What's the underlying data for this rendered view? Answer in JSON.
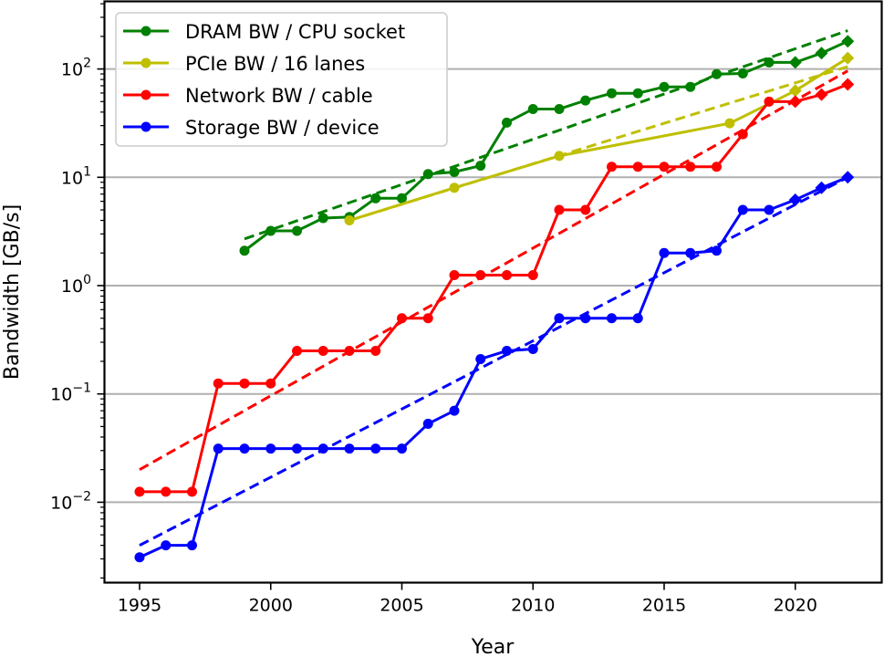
{
  "chart_data": {
    "type": "line",
    "title": "",
    "xlabel": "Year",
    "ylabel": "Bandwidth [GB/s]",
    "yscale": "log",
    "xlim": [
      1994.0,
      2023.3
    ],
    "ylim": [
      0.0019,
      260
    ],
    "xticks": [
      1995,
      2000,
      2005,
      2010,
      2015,
      2020
    ],
    "xtick_labels": [
      "1995",
      "2000",
      "2005",
      "2010",
      "2015",
      "2020"
    ],
    "yticks": [
      0.01,
      0.1,
      1,
      10,
      100
    ],
    "ytick_labels": [
      {
        "base": "10",
        "exp": "−2"
      },
      {
        "base": "10",
        "exp": "−1"
      },
      {
        "base": "10",
        "exp": "0"
      },
      {
        "base": "10",
        "exp": "1"
      },
      {
        "base": "10",
        "exp": "2"
      }
    ],
    "grid": "horizontal major",
    "legend_position": "top-left",
    "series": [
      {
        "name": "DRAM BW / CPU socket",
        "color": "#008000",
        "x": [
          1999,
          2000,
          2001,
          2002,
          2003,
          2004,
          2005,
          2006,
          2007,
          2008,
          2009,
          2010,
          2011,
          2012,
          2013,
          2014,
          2015,
          2016,
          2017,
          2018,
          2019,
          2020,
          2021,
          2022
        ],
        "y": [
          2.1,
          3.2,
          3.2,
          4.2,
          4.3,
          6.4,
          6.4,
          10.7,
          11.2,
          12.8,
          32,
          42.7,
          42.7,
          51.2,
          59.7,
          59.7,
          68.3,
          68.3,
          89.6,
          91,
          115,
          115,
          140,
          180
        ],
        "projected_from": 2020,
        "fit": {
          "x": [
            1999,
            2022
          ],
          "y": [
            2.7,
            226
          ]
        }
      },
      {
        "name": "PCIe BW / 16 lanes",
        "color": "#bfbf00",
        "x": [
          2003,
          2007,
          2011,
          2017.5,
          2020,
          2022
        ],
        "y": [
          4,
          8,
          15.75,
          31.5,
          63,
          126
        ],
        "projected_from": 2020,
        "fit": {
          "x": [
            2003,
            2022
          ],
          "y": [
            4,
            105
          ]
        }
      },
      {
        "name": "Network BW / cable",
        "color": "#ff0000",
        "x": [
          1995,
          1996,
          1997,
          1998,
          1999,
          2000,
          2001,
          2002,
          2003,
          2004,
          2005,
          2006,
          2007,
          2008,
          2009,
          2010,
          2011,
          2012,
          2013,
          2014,
          2015,
          2016,
          2017,
          2018,
          2019,
          2020,
          2021,
          2022
        ],
        "y": [
          0.0125,
          0.0125,
          0.0125,
          0.125,
          0.125,
          0.125,
          0.25,
          0.25,
          0.25,
          0.25,
          0.5,
          0.5,
          1.25,
          1.25,
          1.25,
          1.25,
          5,
          5,
          12.5,
          12.5,
          12.5,
          12.5,
          12.5,
          25,
          50,
          50,
          58,
          72
        ],
        "projected_from": 2020,
        "fit": {
          "x": [
            1995,
            2022
          ],
          "y": [
            0.02,
            96
          ]
        }
      },
      {
        "name": "Storage BW / device",
        "color": "#0000ff",
        "x": [
          1995,
          1996,
          1997,
          1998,
          1999,
          2000,
          2001,
          2002,
          2003,
          2004,
          2005,
          2006,
          2007,
          2008,
          2009,
          2010,
          2011,
          2012,
          2013,
          2014,
          2015,
          2016,
          2017,
          2018,
          2019,
          2020,
          2021,
          2022
        ],
        "y": [
          0.0031,
          0.004,
          0.004,
          0.03125,
          0.03125,
          0.03125,
          0.03125,
          0.03125,
          0.03125,
          0.03125,
          0.03125,
          0.053,
          0.07,
          0.21,
          0.25,
          0.26,
          0.5,
          0.5,
          0.5,
          0.5,
          2,
          2,
          2.1,
          5,
          5,
          6.2,
          8,
          10
        ],
        "projected_from": 2020,
        "fit": {
          "x": [
            1995,
            2022
          ],
          "y": [
            0.004,
            10
          ]
        }
      }
    ]
  }
}
